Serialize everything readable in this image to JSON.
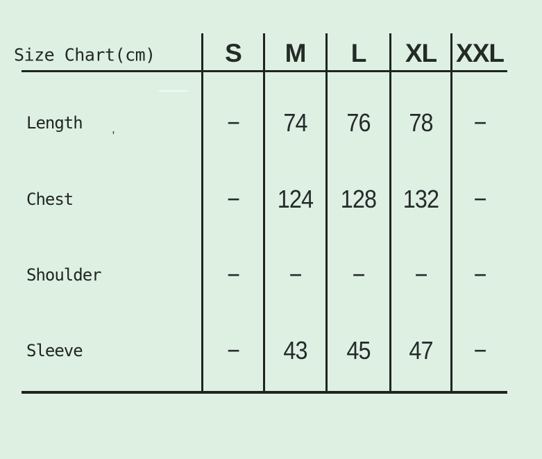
{
  "page": {
    "background_color": "#def0e2",
    "line_color": "#1e2520",
    "text_color": "#242a2c"
  },
  "chart_data": {
    "type": "table",
    "title": "Size Chart(cm)",
    "unit": "cm",
    "columns": [
      "S",
      "M",
      "L",
      "XL",
      "XXL"
    ],
    "row_labels": [
      "Length",
      "Chest",
      "Shoulder",
      "Sleeve"
    ],
    "rows": [
      [
        "−",
        74,
        76,
        78,
        "−"
      ],
      [
        "−",
        124,
        128,
        132,
        "−"
      ],
      [
        "−",
        "−",
        "−",
        "−",
        "−"
      ],
      [
        "−",
        43,
        45,
        47,
        "−"
      ]
    ]
  },
  "artifacts": {
    "label_mark": ","
  }
}
